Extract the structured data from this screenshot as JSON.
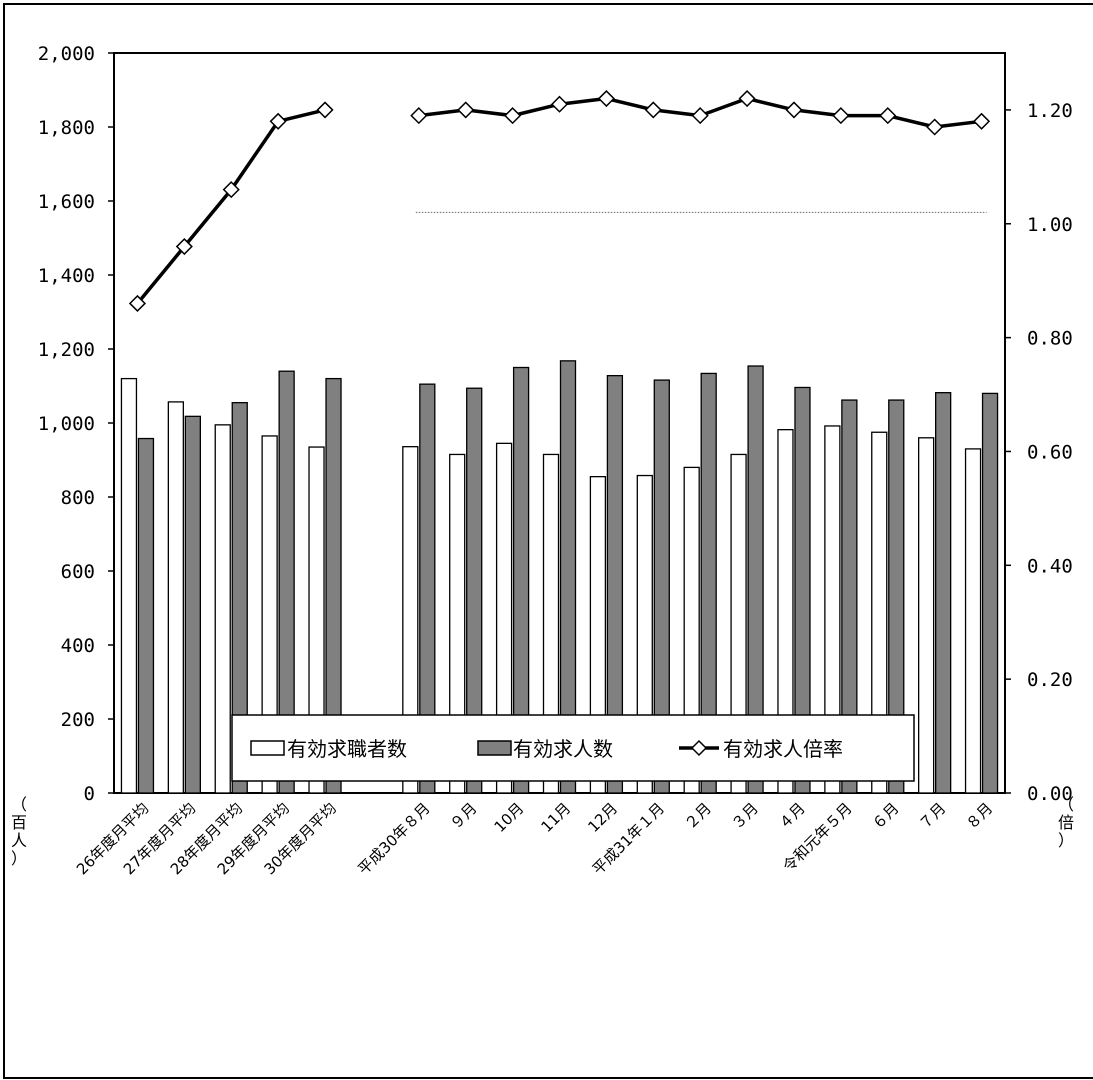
{
  "chart_data": {
    "type": "bar",
    "categories": [
      "26年度月平均",
      "27年度月平均",
      "28年度月平均",
      "29年度月平均",
      "30年度月平均",
      "",
      "平成30年８月",
      "９月",
      "10月",
      "11月",
      "12月",
      "平成31年１月",
      "２月",
      "３月",
      "４月",
      "令和元年５月",
      "６月",
      "７月",
      "８月"
    ],
    "series": [
      {
        "name": "有効求職者数",
        "kind": "bar",
        "axis": "left",
        "color": "#ffffff",
        "values": [
          1120,
          1057,
          995,
          965,
          935,
          null,
          936,
          915,
          945,
          915,
          855,
          858,
          880,
          915,
          982,
          992,
          975,
          960,
          930
        ]
      },
      {
        "name": "有効求人数",
        "kind": "bar",
        "axis": "left",
        "color": "#808080",
        "values": [
          958,
          1018,
          1055,
          1140,
          1120,
          null,
          1105,
          1094,
          1150,
          1168,
          1128,
          1116,
          1134,
          1154,
          1096,
          1062,
          1062,
          1082,
          1080
        ]
      },
      {
        "name": "有効求人倍率",
        "kind": "line",
        "axis": "right",
        "color": "#000000",
        "values": [
          0.86,
          0.96,
          1.06,
          1.18,
          1.2,
          null,
          1.19,
          1.2,
          1.19,
          1.21,
          1.22,
          1.2,
          1.19,
          1.22,
          1.2,
          1.19,
          1.19,
          1.17,
          1.18
        ]
      }
    ],
    "y_left": {
      "ylim": [
        0,
        2000
      ],
      "ticks": [
        "0",
        "200",
        "400",
        "600",
        "800",
        "1,000",
        "1,200",
        "1,400",
        "1,600",
        "1,800",
        "2,000"
      ]
    },
    "y_right": {
      "ylim": [
        0,
        1.3
      ],
      "ticks": [
        "0.00",
        "0.20",
        "0.40",
        "0.60",
        "0.80",
        "1.00",
        "1.20"
      ]
    },
    "reference_line": {
      "axis": "right",
      "value": 1.02
    },
    "left_unit": "（百人）",
    "right_unit": "（倍）",
    "legend_position": "bottom"
  }
}
